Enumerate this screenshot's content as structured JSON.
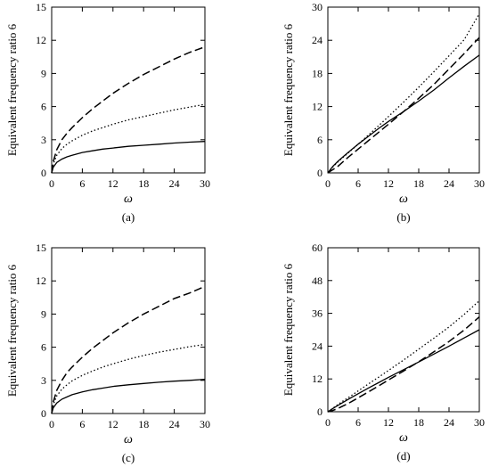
{
  "chart_data": [
    {
      "type": "line",
      "panel_label": "(a)",
      "ylabel": "Equivalent frequency ratio 6",
      "xlabel": "ω",
      "xlim": [
        0,
        30
      ],
      "ylim": [
        0,
        15
      ],
      "xticks": [
        0,
        6,
        12,
        18,
        24,
        30
      ],
      "yticks": [
        0,
        3,
        6,
        9,
        12,
        15
      ],
      "grid": false,
      "x": [
        0,
        0.3,
        1,
        2,
        3,
        4,
        6,
        8,
        10,
        12,
        15,
        18,
        21,
        24,
        27,
        30
      ],
      "series": [
        {
          "style": "solid",
          "values": [
            0,
            0.5,
            0.95,
            1.25,
            1.45,
            1.6,
            1.85,
            2.0,
            2.15,
            2.25,
            2.4,
            2.5,
            2.6,
            2.7,
            2.78,
            2.85
          ]
        },
        {
          "style": "dotted",
          "values": [
            0,
            0.8,
            1.6,
            2.2,
            2.6,
            2.9,
            3.4,
            3.8,
            4.1,
            4.4,
            4.8,
            5.1,
            5.4,
            5.7,
            5.95,
            6.2
          ]
        },
        {
          "style": "dashed",
          "values": [
            0,
            1.0,
            2.1,
            3.0,
            3.6,
            4.1,
            5.0,
            5.8,
            6.5,
            7.2,
            8.1,
            8.9,
            9.6,
            10.3,
            10.9,
            11.4
          ]
        }
      ]
    },
    {
      "type": "line",
      "panel_label": "(b)",
      "ylabel": "Equivalent frequency ratio 6",
      "xlabel": "ω",
      "xlim": [
        0,
        30
      ],
      "ylim": [
        0,
        30
      ],
      "xticks": [
        0,
        6,
        12,
        18,
        24,
        30
      ],
      "yticks": [
        0,
        6,
        12,
        18,
        24,
        30
      ],
      "grid": false,
      "x": [
        0,
        0.5,
        1,
        2,
        3,
        4,
        6,
        8,
        10,
        12,
        15,
        18,
        21,
        24,
        27,
        30
      ],
      "series": [
        {
          "style": "solid",
          "values": [
            0,
            0.6,
            1.2,
            2.1,
            2.9,
            3.7,
            5.2,
            6.6,
            8.0,
            9.3,
            11.1,
            13.0,
            15.0,
            17.2,
            19.3,
            21.3
          ]
        },
        {
          "style": "dotted",
          "values": [
            0,
            0.6,
            1.1,
            2.0,
            2.8,
            3.6,
            5.2,
            6.8,
            8.5,
            10.2,
            12.8,
            15.5,
            18.3,
            21.2,
            24.1,
            28.8
          ]
        },
        {
          "style": "dashed",
          "values": [
            0,
            0.3,
            0.6,
            1.2,
            2.0,
            2.8,
            4.3,
            5.8,
            7.3,
            8.8,
            11.1,
            13.5,
            16.0,
            18.8,
            21.6,
            24.5
          ]
        }
      ]
    },
    {
      "type": "line",
      "panel_label": "(c)",
      "ylabel": "Equivalent frequency ratio 6",
      "xlabel": "ω",
      "xlim": [
        0,
        30
      ],
      "ylim": [
        0,
        15
      ],
      "xticks": [
        0,
        6,
        12,
        18,
        24,
        30
      ],
      "yticks": [
        0,
        3,
        6,
        9,
        12,
        15
      ],
      "grid": false,
      "x": [
        0,
        0.3,
        1,
        2,
        3,
        4,
        6,
        8,
        10,
        12,
        15,
        18,
        21,
        24,
        27,
        30
      ],
      "series": [
        {
          "style": "solid",
          "values": [
            0,
            0.5,
            0.95,
            1.3,
            1.5,
            1.7,
            1.95,
            2.15,
            2.3,
            2.45,
            2.6,
            2.72,
            2.83,
            2.93,
            3.0,
            3.1
          ]
        },
        {
          "style": "dotted",
          "values": [
            0,
            0.8,
            1.6,
            2.2,
            2.6,
            2.95,
            3.45,
            3.85,
            4.2,
            4.5,
            4.9,
            5.25,
            5.55,
            5.8,
            6.05,
            6.25
          ]
        },
        {
          "style": "dashed",
          "values": [
            0,
            1.0,
            2.1,
            3.0,
            3.7,
            4.2,
            5.1,
            5.9,
            6.6,
            7.3,
            8.2,
            9.0,
            9.7,
            10.4,
            10.9,
            11.5
          ]
        }
      ]
    },
    {
      "type": "line",
      "panel_label": "(d)",
      "ylabel": "Equivalent frequency ratio 6",
      "xlabel": "ω",
      "xlim": [
        0,
        30
      ],
      "ylim": [
        0,
        60
      ],
      "xticks": [
        0,
        6,
        12,
        18,
        24,
        30
      ],
      "yticks": [
        0,
        12,
        24,
        36,
        48,
        60
      ],
      "grid": false,
      "x": [
        0,
        0.5,
        1,
        2,
        3,
        4,
        6,
        8,
        10,
        12,
        15,
        18,
        21,
        24,
        27,
        30
      ],
      "series": [
        {
          "style": "solid",
          "values": [
            0,
            0.6,
            1.2,
            2.3,
            3.4,
            4.5,
            6.6,
            8.6,
            10.6,
            12.6,
            15.4,
            18.2,
            21.1,
            24.0,
            27.0,
            30.0
          ]
        },
        {
          "style": "dotted",
          "values": [
            0,
            0.6,
            1.3,
            2.6,
            3.9,
            5.1,
            7.6,
            10.1,
            12.6,
            15.1,
            18.9,
            22.9,
            26.9,
            31.0,
            35.6,
            40.6
          ]
        },
        {
          "style": "dashed",
          "values": [
            0,
            0.2,
            0.5,
            1.2,
            2.1,
            3.0,
            5.1,
            7.2,
            9.4,
            11.6,
            14.9,
            18.3,
            21.9,
            25.7,
            29.9,
            34.7
          ]
        }
      ]
    }
  ]
}
